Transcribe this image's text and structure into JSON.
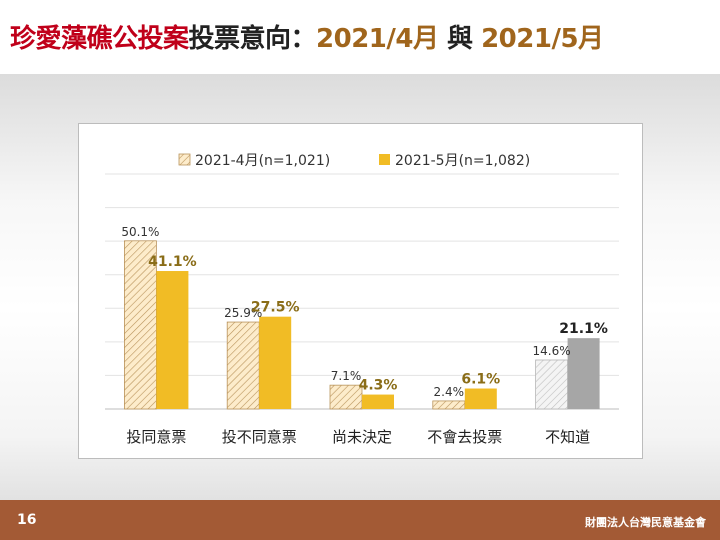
{
  "title": {
    "part1": "珍愛藻礁公投案",
    "part2": "投票意向：",
    "part3": "2021/4月",
    "part4": " 與 ",
    "part5": "2021/5月"
  },
  "footer": {
    "page_number": "16",
    "org": "財團法人台灣民意基金會"
  },
  "colors": {
    "april": "#fde9c4",
    "april_hatch": "#b9935b",
    "may": "#f1bc25",
    "unknown_may": "#a6a6a6",
    "unknown_april_hatch": "#c8c8c8",
    "may_label": "#8a6d18"
  },
  "chart_data": {
    "type": "bar",
    "categories": [
      "投同意票",
      "投不同意票",
      "尚未決定",
      "不會去投票",
      "不知道"
    ],
    "series": [
      {
        "name": "2021-4月(n=1,021)",
        "values": [
          50.1,
          25.9,
          7.1,
          2.4,
          14.6
        ],
        "labels": [
          "50.1%",
          "25.9%",
          "7.1%",
          "2.4%",
          "14.6%"
        ]
      },
      {
        "name": "2021-5月(n=1,082)",
        "values": [
          41.1,
          27.5,
          4.3,
          6.1,
          21.1
        ],
        "labels": [
          "41.1%",
          "27.5%",
          "4.3%",
          "6.1%",
          "21.1%"
        ]
      }
    ],
    "ylim": [
      0,
      70
    ],
    "gridlines": [
      10,
      20,
      30,
      40,
      50,
      60,
      70
    ],
    "legend_position": "top-center",
    "xlabel": "",
    "ylabel": ""
  }
}
